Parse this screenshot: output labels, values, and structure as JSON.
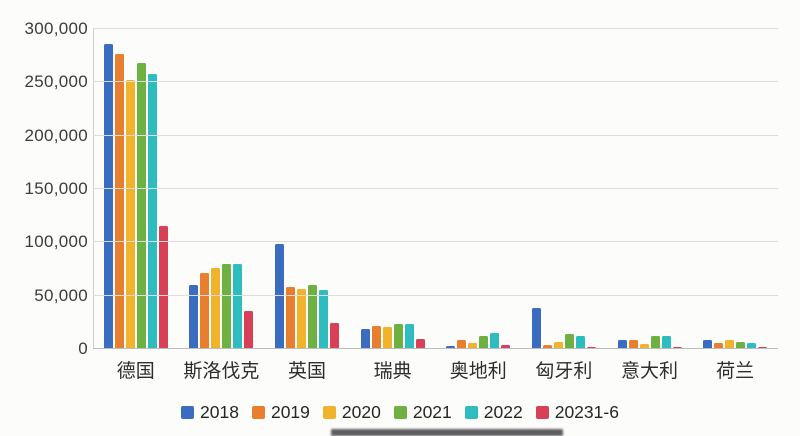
{
  "chart_data": {
    "type": "bar",
    "title": "",
    "xlabel": "",
    "ylabel": "",
    "grid": true,
    "legend_position": "bottom",
    "ylim": [
      0,
      300000
    ],
    "ytick_interval": 50000,
    "ytick_labels": [
      "0",
      "50,000",
      "100,000",
      "150,000",
      "200,000",
      "250,000",
      "300,000"
    ],
    "categories": [
      "德国",
      "斯洛伐克",
      "英国",
      "瑞典",
      "奥地利",
      "匈牙利",
      "意大利",
      "荷兰"
    ],
    "series": [
      {
        "name": "2018",
        "color": "#3a6cc0",
        "values": [
          286000,
          60000,
          98000,
          19000,
          3000,
          38000,
          8000,
          8000
        ]
      },
      {
        "name": "2019",
        "color": "#e87f2e",
        "values": [
          277000,
          71000,
          58000,
          22000,
          8000,
          3500,
          8000,
          6000
        ]
      },
      {
        "name": "2020",
        "color": "#f2b32c",
        "values": [
          252000,
          76000,
          56000,
          21000,
          6000,
          7000,
          4500,
          8500
        ]
      },
      {
        "name": "2021",
        "color": "#6fb042",
        "values": [
          268000,
          80000,
          60000,
          23000,
          12000,
          14000,
          12000,
          7000
        ]
      },
      {
        "name": "2022",
        "color": "#2ebcbe",
        "values": [
          258000,
          80000,
          55000,
          23000,
          15000,
          12000,
          12000,
          6000
        ]
      },
      {
        "name": "20231-6",
        "color": "#d84057",
        "values": [
          115000,
          36000,
          24000,
          9000,
          4000,
          2000,
          2000,
          1500
        ]
      }
    ]
  }
}
